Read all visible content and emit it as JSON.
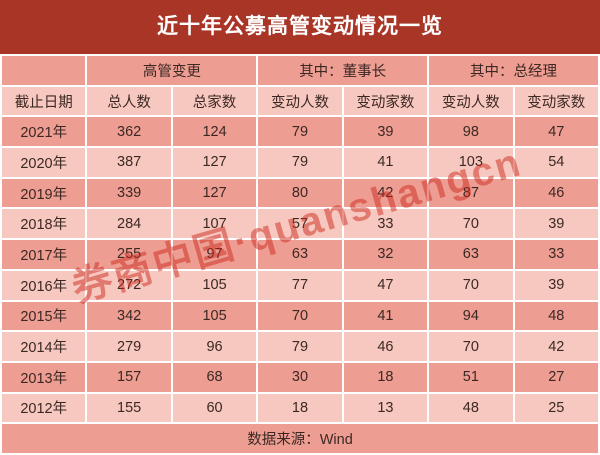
{
  "title": "近十年公募高管变动情况一览",
  "watermark": "券商中国·quanshangcn",
  "colors": {
    "title_bg": "#a93527",
    "row_dark": "#ed9d92",
    "row_light": "#f7c8c0",
    "text": "#3c2823",
    "title_text": "#ffffff",
    "watermark_red": "#cd2a1e",
    "grid_gap": "#ffffff"
  },
  "table": {
    "group_headers": [
      "高管变更",
      "其中：董事长",
      "其中：总经理"
    ],
    "column_headers": [
      "截止日期",
      "总人数",
      "总家数",
      "变动人数",
      "变动家数",
      "变动人数",
      "变动家数"
    ],
    "source": "数据来源：Wind"
  },
  "chart_data": {
    "type": "table",
    "title": "近十年公募高管变动情况一览",
    "column_groups": [
      {
        "label": "高管变更",
        "span": [
          "总人数",
          "总家数"
        ]
      },
      {
        "label": "其中：董事长",
        "span": [
          "变动人数",
          "变动家数"
        ]
      },
      {
        "label": "其中：总经理",
        "span": [
          "变动人数",
          "变动家数"
        ]
      }
    ],
    "columns": [
      "截止日期",
      "总人数",
      "总家数",
      "变动人数",
      "变动家数",
      "变动人数",
      "变动家数"
    ],
    "rows": [
      [
        "2021年",
        362,
        124,
        79,
        39,
        98,
        47
      ],
      [
        "2020年",
        387,
        127,
        79,
        41,
        103,
        54
      ],
      [
        "2019年",
        339,
        127,
        80,
        42,
        87,
        46
      ],
      [
        "2018年",
        284,
        107,
        57,
        33,
        70,
        39
      ],
      [
        "2017年",
        255,
        97,
        63,
        32,
        63,
        33
      ],
      [
        "2016年",
        272,
        105,
        77,
        47,
        70,
        39
      ],
      [
        "2015年",
        342,
        105,
        70,
        41,
        94,
        48
      ],
      [
        "2014年",
        279,
        96,
        79,
        46,
        70,
        42
      ],
      [
        "2013年",
        157,
        68,
        30,
        18,
        51,
        27
      ],
      [
        "2012年",
        155,
        60,
        18,
        13,
        48,
        25
      ]
    ],
    "source": "数据来源：Wind"
  }
}
